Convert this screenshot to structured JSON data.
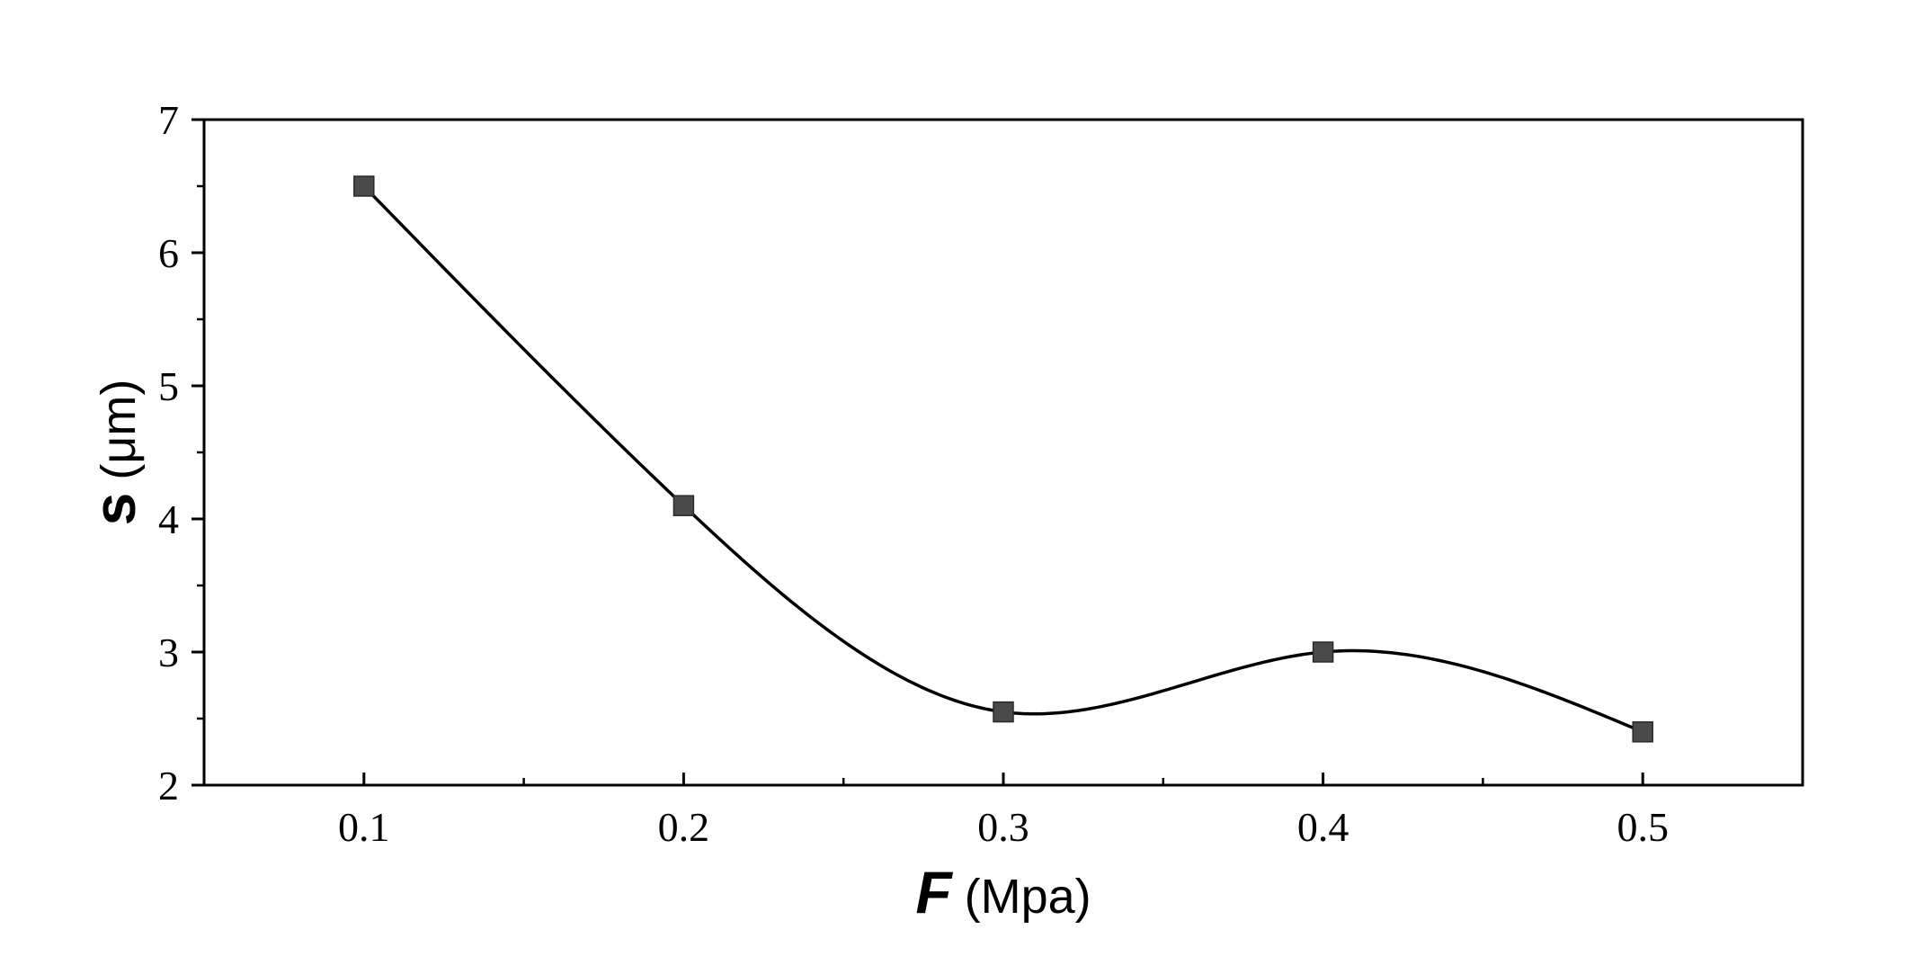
{
  "chart_data": {
    "type": "line",
    "x": [
      0.1,
      0.2,
      0.3,
      0.4,
      0.5
    ],
    "series": [
      {
        "values": [
          6.5,
          4.1,
          2.55,
          3.0,
          2.4
        ],
        "color": "#4a4a4a",
        "marker": "square",
        "line_style": "smooth-spline"
      }
    ],
    "xlabel": {
      "variable": "F",
      "unit": "(Mpa)"
    },
    "ylabel": {
      "variable": "s",
      "unit": "(μm)"
    },
    "xlim": [
      0.05,
      0.55
    ],
    "ylim": [
      2,
      7
    ],
    "x_ticks": [
      "0.1",
      "0.2",
      "0.3",
      "0.4",
      "0.5"
    ],
    "x_minor_ticks": [
      0.15,
      0.25,
      0.35,
      0.45
    ],
    "y_ticks": [
      "2",
      "3",
      "4",
      "5",
      "6",
      "7"
    ],
    "y_minor_ticks": [
      2.5,
      3.5,
      4.5,
      5.5,
      6.5
    ],
    "grid": false,
    "line_color": "#000000"
  }
}
